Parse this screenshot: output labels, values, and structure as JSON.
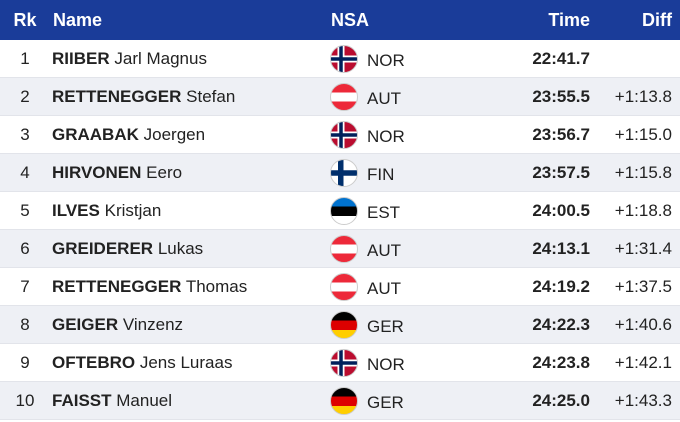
{
  "header": {
    "rank": "Rk",
    "name": "Name",
    "nsa": "NSA",
    "time": "Time",
    "diff": "Diff"
  },
  "rows": [
    {
      "rank": "1",
      "last": "RIIBER",
      "first": "Jarl Magnus",
      "nsa": "NOR",
      "time": "22:41.7"
    },
    {
      "rank": "2",
      "last": "RETTENEGGER",
      "first": "Stefan",
      "nsa": "AUT",
      "time": "23:55.5",
      "diff": "+1:13.8"
    },
    {
      "rank": "3",
      "last": "GRAABAK",
      "first": "Joergen",
      "nsa": "NOR",
      "time": "23:56.7",
      "diff": "+1:15.0"
    },
    {
      "rank": "4",
      "last": "HIRVONEN",
      "first": "Eero",
      "nsa": "FIN",
      "time": "23:57.5",
      "diff": "+1:15.8"
    },
    {
      "rank": "5",
      "last": "ILVES",
      "first": "Kristjan",
      "nsa": "EST",
      "time": "24:00.5",
      "diff": "+1:18.8"
    },
    {
      "rank": "6",
      "last": "GREIDERER",
      "first": "Lukas",
      "nsa": "AUT",
      "time": "24:13.1",
      "diff": "+1:31.4"
    },
    {
      "rank": "7",
      "last": "RETTENEGGER",
      "first": "Thomas",
      "nsa": "AUT",
      "time": "24:19.2",
      "diff": "+1:37.5"
    },
    {
      "rank": "8",
      "last": "GEIGER",
      "first": "Vinzenz",
      "nsa": "GER",
      "time": "24:22.3",
      "diff": "+1:40.6"
    },
    {
      "rank": "9",
      "last": "OFTEBRO",
      "first": "Jens Luraas",
      "nsa": "NOR",
      "time": "24:23.8",
      "diff": "+1:42.1"
    },
    {
      "rank": "10",
      "last": "FAISST",
      "first": "Manuel",
      "nsa": "GER",
      "time": "24:25.0",
      "diff": "+1:43.3"
    }
  ]
}
